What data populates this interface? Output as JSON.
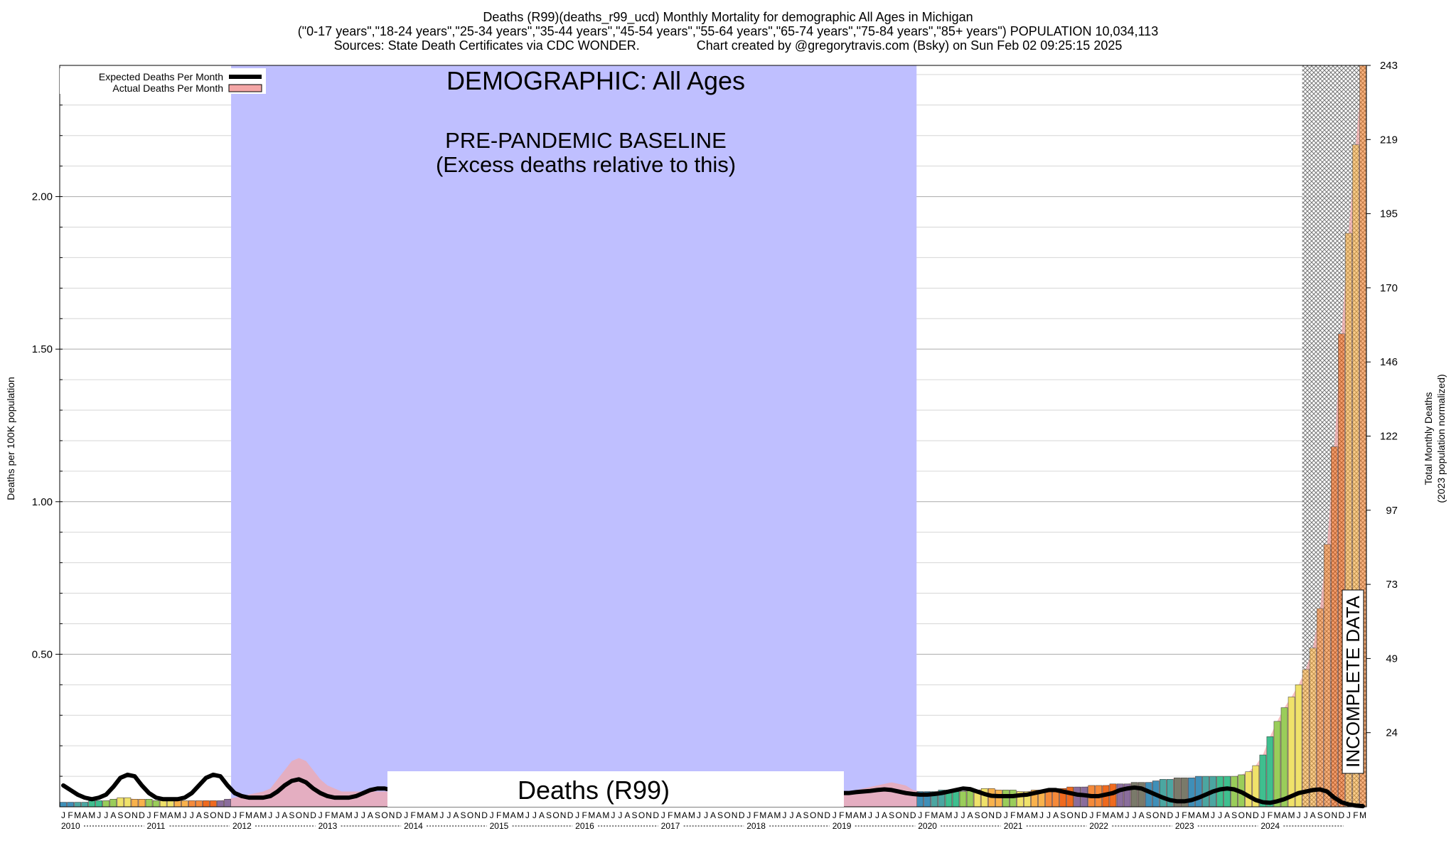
{
  "header": {
    "title": "Deaths (R99)(deaths_r99_ucd) Monthly Mortality for demographic All Ages in Michigan",
    "subtitle": "(\"0-17 years\",\"18-24 years\",\"25-34 years\",\"35-44 years\",\"45-54 years\",\"55-64 years\",\"65-74 years\",\"75-84 years\",\"85+ years\") POPULATION 10,034,113",
    "sources": "Sources: State Death Certificates via CDC WONDER.",
    "credit": "Chart created by @gregorytravis.com (Bsky) on Sun Feb 02 09:25:15 2025"
  },
  "legend": {
    "expected": "Expected Deaths Per Month",
    "actual": "Actual Deaths Per Month"
  },
  "annotations": {
    "demographic": "DEMOGRAPHIC: All Ages",
    "baseline_line1": "PRE-PANDEMIC BASELINE",
    "baseline_line2": "(Excess deaths relative to this)",
    "cause_box": "Deaths (R99)",
    "incomplete": "INCOMPLETE DATA"
  },
  "colors": {
    "baseline_band": "#bfbfff",
    "expected_line": "#000000",
    "actual_area": "#f4a6a6",
    "bar_palette": [
      "#3f8fb8",
      "#4ba6a1",
      "#3fbf8f",
      "#9acd5a",
      "#f0e26a",
      "#f9b24c",
      "#f58a3a",
      "#ef6a1e",
      "#8a6d9c",
      "#7a7a6a"
    ]
  },
  "chart_data": {
    "type": "bar",
    "ylabel": "Deaths per 100K population",
    "y2label": "Total Monthly Deaths",
    "y2label_sub": "(2023 population normalized)",
    "ylim": [
      0,
      2.43
    ],
    "yticks": [
      "0.50",
      "1.00",
      "1.50",
      "2.00"
    ],
    "y2ticks": [
      "24",
      "49",
      "73",
      "97",
      "122",
      "146",
      "170",
      "195",
      "219",
      "243"
    ],
    "month_letters": [
      "J",
      "F",
      "M",
      "A",
      "M",
      "J",
      "J",
      "A",
      "S",
      "O",
      "N",
      "D"
    ],
    "years": [
      "2010",
      "2011",
      "2012",
      "2013",
      "2014",
      "2015",
      "2016",
      "2017",
      "2018",
      "2019",
      "2020",
      "2021",
      "2022",
      "2023",
      "2024"
    ],
    "baseline_range": [
      "2012-01",
      "2019-12"
    ],
    "incomplete_range": [
      "2024-07",
      "2024-12"
    ],
    "actual": [
      0.015,
      0.015,
      0.015,
      0.015,
      0.02,
      0.02,
      0.02,
      0.025,
      0.03,
      0.03,
      0.025,
      0.025,
      0.025,
      0.02,
      0.02,
      0.02,
      0.02,
      0.02,
      0.02,
      0.02,
      0.02,
      0.02,
      0.02,
      0.025,
      0.03,
      0.035,
      0.04,
      0.045,
      0.05,
      0.06,
      0.09,
      0.12,
      0.15,
      0.16,
      0.15,
      0.12,
      0.09,
      0.07,
      0.06,
      0.05,
      0.05,
      0.05,
      0.05,
      0.05,
      0.05,
      0.05,
      0.05,
      0.05,
      0.05,
      0.05,
      0.05,
      0.05,
      0.05,
      0.05,
      0.05,
      0.05,
      0.05,
      0.05,
      0.05,
      0.05,
      0.05,
      0.05,
      0.05,
      0.05,
      0.05,
      0.05,
      0.05,
      0.05,
      0.05,
      0.05,
      0.05,
      0.05,
      0.05,
      0.05,
      0.05,
      0.05,
      0.05,
      0.05,
      0.05,
      0.05,
      0.05,
      0.05,
      0.05,
      0.05,
      0.05,
      0.05,
      0.05,
      0.05,
      0.05,
      0.05,
      0.05,
      0.05,
      0.05,
      0.05,
      0.05,
      0.05,
      0.05,
      0.05,
      0.05,
      0.05,
      0.05,
      0.05,
      0.05,
      0.05,
      0.05,
      0.05,
      0.05,
      0.05,
      0.045,
      0.05,
      0.05,
      0.055,
      0.06,
      0.065,
      0.07,
      0.075,
      0.08,
      0.075,
      0.07,
      0.055,
      0.05,
      0.05,
      0.05,
      0.055,
      0.055,
      0.05,
      0.05,
      0.055,
      0.055,
      0.06,
      0.06,
      0.055,
      0.055,
      0.055,
      0.05,
      0.05,
      0.055,
      0.055,
      0.055,
      0.06,
      0.06,
      0.065,
      0.065,
      0.065,
      0.07,
      0.07,
      0.07,
      0.075,
      0.075,
      0.075,
      0.08,
      0.08,
      0.08,
      0.085,
      0.09,
      0.09,
      0.095,
      0.095,
      0.095,
      0.1,
      0.1,
      0.1,
      0.1,
      0.1,
      0.1,
      0.105,
      0.115,
      0.135,
      0.17,
      0.23,
      0.28,
      0.325,
      0.36,
      0.4,
      0.45,
      0.52,
      0.65,
      0.86,
      1.18,
      1.55,
      1.88,
      2.17,
      2.43
    ],
    "expected": [
      0.07,
      0.055,
      0.04,
      0.03,
      0.025,
      0.03,
      0.04,
      0.065,
      0.095,
      0.105,
      0.1,
      0.07,
      0.045,
      0.03,
      0.025,
      0.025,
      0.025,
      0.03,
      0.045,
      0.07,
      0.095,
      0.105,
      0.1,
      0.07,
      0.045,
      0.035,
      0.03,
      0.03,
      0.03,
      0.035,
      0.05,
      0.07,
      0.085,
      0.09,
      0.08,
      0.06,
      0.045,
      0.035,
      0.03,
      0.03,
      0.03,
      0.035,
      0.045,
      0.055,
      0.06,
      0.06,
      0.055,
      0.05,
      0.05,
      0.05,
      0.05,
      0.05,
      0.05,
      0.05,
      0.05,
      0.05,
      0.05,
      0.05,
      0.05,
      0.05,
      0.05,
      0.05,
      0.05,
      0.05,
      0.05,
      0.05,
      0.05,
      0.05,
      0.05,
      0.05,
      0.05,
      0.05,
      0.05,
      0.05,
      0.05,
      0.05,
      0.05,
      0.05,
      0.05,
      0.05,
      0.05,
      0.05,
      0.05,
      0.05,
      0.05,
      0.05,
      0.05,
      0.05,
      0.05,
      0.05,
      0.05,
      0.05,
      0.05,
      0.05,
      0.05,
      0.05,
      0.05,
      0.05,
      0.05,
      0.05,
      0.05,
      0.05,
      0.05,
      0.05,
      0.05,
      0.05,
      0.05,
      0.05,
      0.045,
      0.045,
      0.045,
      0.048,
      0.05,
      0.052,
      0.055,
      0.057,
      0.055,
      0.05,
      0.045,
      0.042,
      0.04,
      0.04,
      0.042,
      0.045,
      0.05,
      0.055,
      0.06,
      0.058,
      0.05,
      0.042,
      0.036,
      0.035,
      0.035,
      0.035,
      0.038,
      0.04,
      0.045,
      0.05,
      0.055,
      0.055,
      0.05,
      0.045,
      0.04,
      0.038,
      0.035,
      0.035,
      0.04,
      0.045,
      0.055,
      0.06,
      0.063,
      0.06,
      0.05,
      0.04,
      0.03,
      0.022,
      0.018,
      0.018,
      0.022,
      0.03,
      0.04,
      0.05,
      0.057,
      0.06,
      0.057,
      0.048,
      0.035,
      0.022,
      0.015,
      0.013,
      0.018,
      0.025,
      0.035,
      0.045,
      0.05,
      0.055,
      0.057,
      0.05,
      0.03,
      0.015,
      0.008,
      0.004,
      0.002
    ]
  }
}
